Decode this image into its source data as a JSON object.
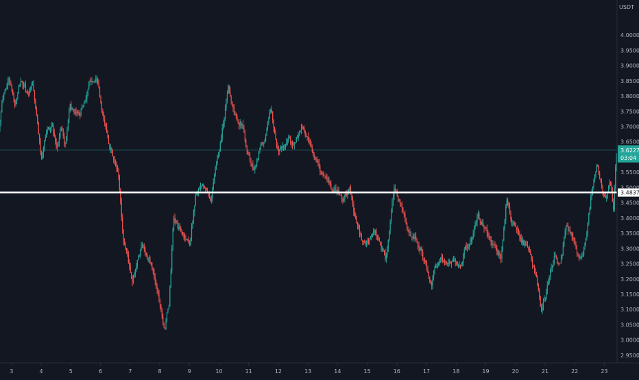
{
  "colors": {
    "background": "#131722",
    "up": "#26a69a",
    "down": "#ef5350",
    "axis_text": "#b2b5be",
    "axis_line": "#2a2e39",
    "support_line": "#ffffff",
    "current_price_line": "#26a69a"
  },
  "chart_data": {
    "type": "candlestick",
    "currency": "USDT",
    "ylim": [
      2.925,
      4.115
    ],
    "y_ticks": [
      "4.0000",
      "3.9500",
      "3.9000",
      "3.8500",
      "3.8000",
      "3.7500",
      "3.7000",
      "3.6500",
      "3.6000",
      "3.5500",
      "3.5000",
      "3.4500",
      "3.4000",
      "3.3500",
      "3.3000",
      "3.2500",
      "3.2000",
      "3.1500",
      "3.1000",
      "3.0500",
      "3.0000",
      "2.9500"
    ],
    "x_ticks": [
      "3",
      "4",
      "5",
      "6",
      "7",
      "8",
      "9",
      "10",
      "11",
      "12",
      "13",
      "14",
      "15",
      "16",
      "17",
      "18",
      "19",
      "20",
      "21",
      "22",
      "23"
    ],
    "x_range_days": [
      2.61,
      23.43
    ],
    "grid": false,
    "support_line": {
      "price": 3.4837,
      "label": "3.4837"
    },
    "current_price": {
      "price": 3.6227,
      "label": "3.6227",
      "countdown": "03:04"
    },
    "path": [
      [
        2.6,
        3.69
      ],
      [
        2.75,
        3.8
      ],
      [
        2.95,
        3.86
      ],
      [
        3.15,
        3.77
      ],
      [
        3.35,
        3.85
      ],
      [
        3.55,
        3.81
      ],
      [
        3.75,
        3.83
      ],
      [
        3.9,
        3.71
      ],
      [
        4.05,
        3.58
      ],
      [
        4.2,
        3.68
      ],
      [
        4.4,
        3.71
      ],
      [
        4.55,
        3.61
      ],
      [
        4.7,
        3.7
      ],
      [
        4.85,
        3.64
      ],
      [
        5.0,
        3.78
      ],
      [
        5.15,
        3.73
      ],
      [
        5.35,
        3.75
      ],
      [
        5.55,
        3.8
      ],
      [
        5.75,
        3.86
      ],
      [
        5.95,
        3.84
      ],
      [
        6.1,
        3.73
      ],
      [
        6.25,
        3.68
      ],
      [
        6.45,
        3.6
      ],
      [
        6.65,
        3.53
      ],
      [
        6.8,
        3.33
      ],
      [
        6.95,
        3.28
      ],
      [
        7.1,
        3.18
      ],
      [
        7.25,
        3.25
      ],
      [
        7.45,
        3.32
      ],
      [
        7.65,
        3.26
      ],
      [
        7.85,
        3.21
      ],
      [
        8.05,
        3.12
      ],
      [
        8.2,
        3.04
      ],
      [
        8.35,
        3.12
      ],
      [
        8.5,
        3.4
      ],
      [
        8.7,
        3.36
      ],
      [
        8.85,
        3.34
      ],
      [
        9.05,
        3.32
      ],
      [
        9.25,
        3.48
      ],
      [
        9.5,
        3.5
      ],
      [
        9.75,
        3.46
      ],
      [
        9.9,
        3.55
      ],
      [
        10.05,
        3.63
      ],
      [
        10.2,
        3.73
      ],
      [
        10.35,
        3.84
      ],
      [
        10.55,
        3.74
      ],
      [
        10.8,
        3.71
      ],
      [
        11.0,
        3.62
      ],
      [
        11.2,
        3.56
      ],
      [
        11.4,
        3.62
      ],
      [
        11.6,
        3.66
      ],
      [
        11.8,
        3.76
      ],
      [
        12.0,
        3.63
      ],
      [
        12.2,
        3.62
      ],
      [
        12.4,
        3.66
      ],
      [
        12.6,
        3.64
      ],
      [
        12.8,
        3.7
      ],
      [
        13.0,
        3.66
      ],
      [
        13.2,
        3.6
      ],
      [
        13.4,
        3.58
      ],
      [
        13.6,
        3.53
      ],
      [
        13.8,
        3.51
      ],
      [
        14.0,
        3.49
      ],
      [
        14.2,
        3.46
      ],
      [
        14.45,
        3.49
      ],
      [
        14.65,
        3.39
      ],
      [
        14.85,
        3.32
      ],
      [
        15.05,
        3.31
      ],
      [
        15.25,
        3.36
      ],
      [
        15.45,
        3.31
      ],
      [
        15.65,
        3.27
      ],
      [
        15.8,
        3.37
      ],
      [
        15.95,
        3.5
      ],
      [
        16.1,
        3.46
      ],
      [
        16.25,
        3.42
      ],
      [
        16.45,
        3.34
      ],
      [
        16.65,
        3.33
      ],
      [
        16.85,
        3.3
      ],
      [
        17.05,
        3.23
      ],
      [
        17.2,
        3.17
      ],
      [
        17.35,
        3.25
      ],
      [
        17.55,
        3.27
      ],
      [
        17.75,
        3.24
      ],
      [
        17.95,
        3.27
      ],
      [
        18.15,
        3.24
      ],
      [
        18.35,
        3.3
      ],
      [
        18.55,
        3.32
      ],
      [
        18.75,
        3.4
      ],
      [
        18.95,
        3.38
      ],
      [
        19.15,
        3.33
      ],
      [
        19.35,
        3.3
      ],
      [
        19.55,
        3.27
      ],
      [
        19.75,
        3.47
      ],
      [
        19.95,
        3.38
      ],
      [
        20.15,
        3.35
      ],
      [
        20.35,
        3.31
      ],
      [
        20.55,
        3.27
      ],
      [
        20.75,
        3.2
      ],
      [
        20.9,
        3.09
      ],
      [
        21.05,
        3.14
      ],
      [
        21.2,
        3.22
      ],
      [
        21.35,
        3.28
      ],
      [
        21.55,
        3.24
      ],
      [
        21.75,
        3.37
      ],
      [
        21.95,
        3.34
      ],
      [
        22.15,
        3.27
      ],
      [
        22.3,
        3.29
      ],
      [
        22.45,
        3.35
      ],
      [
        22.6,
        3.48
      ],
      [
        22.8,
        3.57
      ],
      [
        22.95,
        3.5
      ],
      [
        23.1,
        3.46
      ],
      [
        23.25,
        3.51
      ],
      [
        23.35,
        3.43
      ],
      [
        23.43,
        3.62
      ]
    ],
    "volatility": 0.009,
    "candles_per_day": 30
  }
}
